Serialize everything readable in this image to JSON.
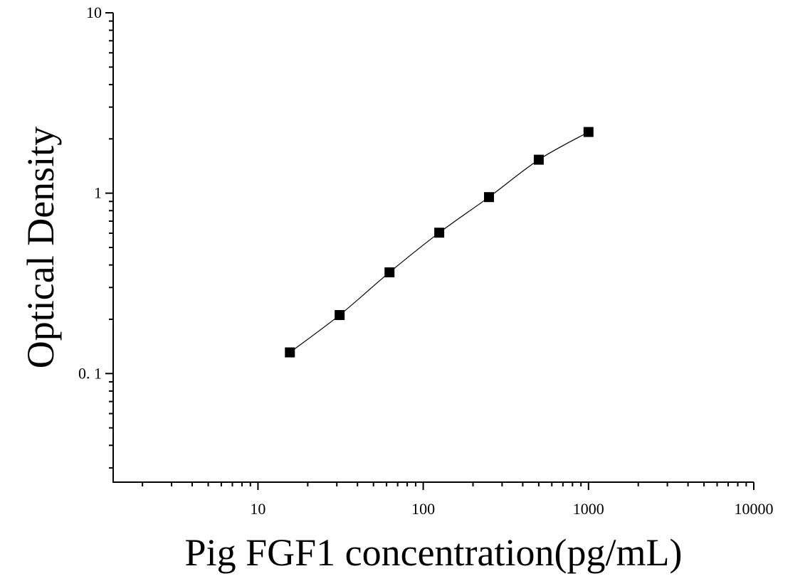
{
  "chart_data": {
    "type": "scatter",
    "title": "",
    "xlabel": "Pig FGF1 concentration(pg/mL)",
    "ylabel": "Optical Density",
    "x_scale": "log",
    "y_scale": "log",
    "xlim": [
      1.33,
      10000
    ],
    "ylim": [
      0.025,
      10
    ],
    "x_ticks": [
      10,
      100,
      1000,
      10000
    ],
    "x_tick_labels": [
      "10",
      "100",
      "1000",
      "10000"
    ],
    "y_ticks": [
      0.1,
      1,
      10
    ],
    "y_tick_labels": [
      "0. 1",
      "1",
      "10"
    ],
    "grid": false,
    "legend": "none",
    "marker": "square",
    "marker_color": "#000000",
    "line_color": "#000000",
    "series": [
      {
        "x": [
          15.6,
          31.2,
          62.5,
          125,
          250,
          500,
          1000
        ],
        "y": [
          0.131,
          0.211,
          0.364,
          0.604,
          0.951,
          1.533,
          2.184
        ],
        "fit_curve": true
      }
    ]
  }
}
